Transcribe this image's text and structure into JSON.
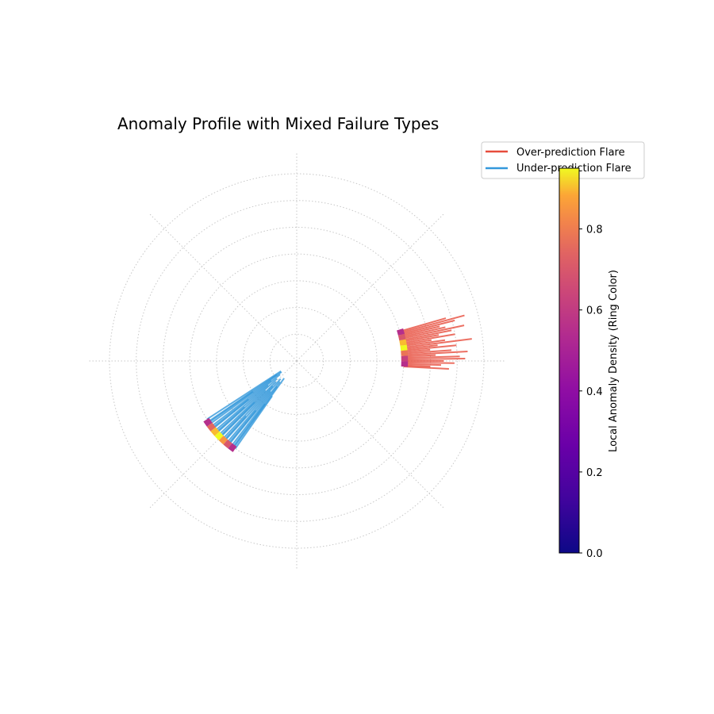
{
  "chart_data": {
    "type": "polar",
    "title": "Anomaly Profile with Mixed Failure Types",
    "grid": true,
    "rlim": [
      0,
      7
    ],
    "ring_radius": 4,
    "legend": {
      "placement": "top-right",
      "entries": [
        {
          "label": "Over-prediction Flare",
          "color": "#e74c3c"
        },
        {
          "label": "Under-prediction Flare",
          "color": "#3498db"
        }
      ]
    },
    "colorbar": {
      "label": "Local Anomaly Density (Ring Color)",
      "colormap": "plasma",
      "range": [
        0,
        0.95
      ],
      "ticks": [
        "0.0",
        "0.2",
        "0.4",
        "0.6",
        "0.8"
      ],
      "tick_values": [
        0.0,
        0.2,
        0.4,
        0.6,
        0.8
      ]
    },
    "series": [
      {
        "name": "Over-prediction Flare",
        "color": "#e74c3c",
        "ring_density": [
          0.55,
          0.62,
          0.78,
          0.95,
          0.9,
          0.7,
          0.55
        ],
        "ring_angle_deg": [
          -3,
          17
        ],
        "flares": [
          [
            16.0,
            5.8
          ],
          [
            15.2,
            6.5
          ],
          [
            14.4,
            6.1
          ],
          [
            13.6,
            5.5
          ],
          [
            12.8,
            5.7
          ],
          [
            12.0,
            6.4
          ],
          [
            11.2,
            5.9
          ],
          [
            10.4,
            5.4
          ],
          [
            9.6,
            6.0
          ],
          [
            8.8,
            5.1
          ],
          [
            8.0,
            5.6
          ],
          [
            7.2,
            6.6
          ],
          [
            6.4,
            5.3
          ],
          [
            5.6,
            6.0
          ],
          [
            4.8,
            5.0
          ],
          [
            4.0,
            5.8
          ],
          [
            3.2,
            6.4
          ],
          [
            2.4,
            5.2
          ],
          [
            1.6,
            6.1
          ],
          [
            0.8,
            6.3
          ],
          [
            0.0,
            5.5
          ],
          [
            -0.8,
            5.9
          ],
          [
            -1.6,
            5.4
          ],
          [
            -2.4,
            5.0
          ],
          [
            -3.0,
            5.7
          ]
        ]
      },
      {
        "name": "Under-prediction Flare",
        "color": "#3498db",
        "ring_density": [
          0.55,
          0.75,
          0.9,
          0.95,
          0.85,
          0.7,
          0.55
        ],
        "ring_angle_deg": [
          213,
          235
        ],
        "flares": [
          [
            213.0,
            0.7
          ],
          [
            214.5,
            0.9
          ],
          [
            216.0,
            0.7
          ],
          [
            217.5,
            1.2
          ],
          [
            219.0,
            0.8
          ],
          [
            220.5,
            1.4
          ],
          [
            222.0,
            1.0
          ],
          [
            223.5,
            1.6
          ],
          [
            225.0,
            1.1
          ],
          [
            226.5,
            1.3
          ],
          [
            228.0,
            0.9
          ],
          [
            229.5,
            1.5
          ],
          [
            231.0,
            1.0
          ],
          [
            232.5,
            1.2
          ],
          [
            234.0,
            0.8
          ],
          [
            215.0,
            2.0
          ],
          [
            218.5,
            2.3
          ],
          [
            221.5,
            2.6
          ],
          [
            224.5,
            2.2
          ],
          [
            227.5,
            2.8
          ],
          [
            230.5,
            2.4
          ],
          [
            233.5,
            2.0
          ],
          [
            235.0,
            1.6
          ]
        ]
      }
    ]
  }
}
